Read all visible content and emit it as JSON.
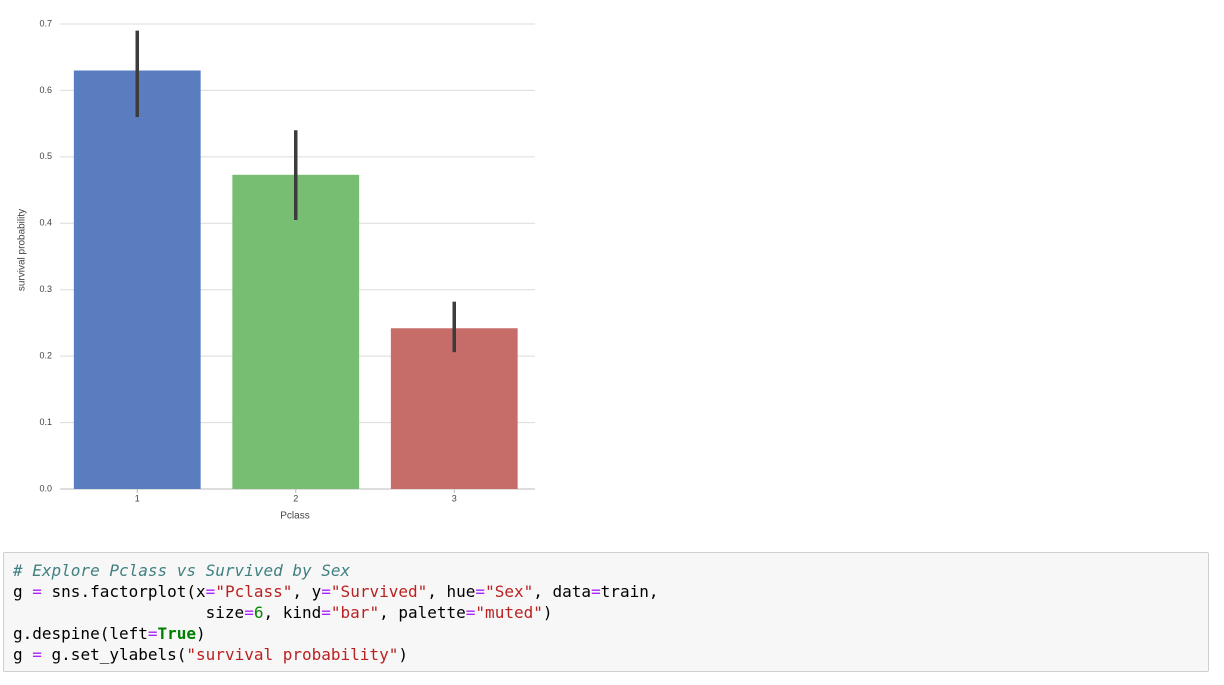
{
  "chart_data": {
    "type": "bar",
    "categories": [
      "1",
      "2",
      "3"
    ],
    "values": [
      0.63,
      0.473,
      0.242
    ],
    "ci_low": [
      0.56,
      0.405,
      0.206
    ],
    "ci_high": [
      0.69,
      0.54,
      0.282
    ],
    "colors": [
      "#5a7dbf",
      "#77be72",
      "#c66d6a"
    ],
    "error_color": "#3c3c3c",
    "x_label": "Pclass",
    "y_label": "survival probability",
    "ylim": [
      0,
      0.7
    ],
    "yticks": [
      {
        "value": 0,
        "label": "0.0"
      },
      0.1,
      0.2,
      0.3,
      0.4,
      0.5,
      0.6,
      0.7
    ],
    "grid": true
  },
  "code": {
    "lines": [
      [
        "# Explore Pclass vs Survived by Sex"
      ],
      [
        "g ",
        "=",
        " sns.factorplot(x",
        "=",
        "\"Pclass\"",
        ", y",
        "=",
        "\"Survived\"",
        ", hue",
        "=",
        "\"Sex\"",
        ", data",
        "=",
        "train,"
      ],
      [
        "                    size",
        "=",
        "6",
        ", kind",
        "=",
        "\"bar\"",
        ", palette",
        "=",
        "\"muted\"",
        ")"
      ],
      [
        "g.despine(left",
        "=",
        "True",
        ")"
      ],
      [
        "g ",
        "=",
        " g.set_ylabels(",
        "\"survival probability\"",
        ")"
      ]
    ]
  }
}
